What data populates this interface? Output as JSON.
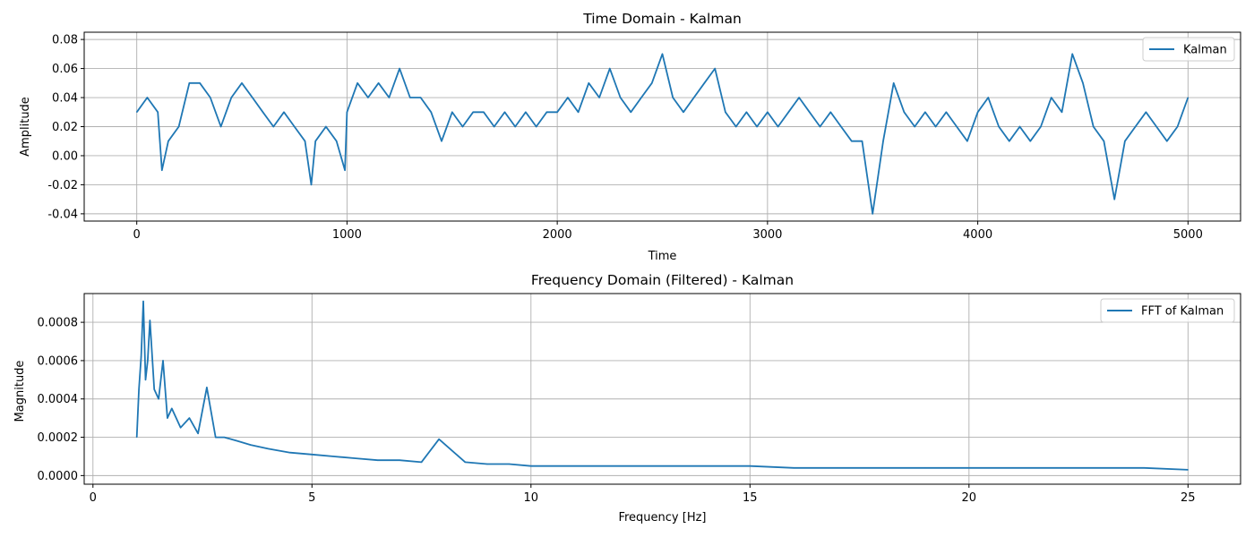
{
  "chart_data": [
    {
      "type": "line",
      "title": "Time Domain - Kalman",
      "xlabel": "Time",
      "ylabel": "Amplitude",
      "xlim": [
        -250,
        5250
      ],
      "ylim": [
        -0.045,
        0.085
      ],
      "xticks": [
        0,
        1000,
        2000,
        3000,
        4000,
        5000
      ],
      "yticks": [
        -0.04,
        -0.02,
        0.0,
        0.02,
        0.04,
        0.06,
        0.08
      ],
      "ytick_decimals": 2,
      "grid": true,
      "legend_position": "top-right",
      "series": [
        {
          "name": "Kalman",
          "color": "#1f77b4",
          "x": [
            0,
            50,
            100,
            120,
            150,
            200,
            250,
            300,
            350,
            400,
            450,
            500,
            550,
            600,
            650,
            700,
            750,
            800,
            830,
            850,
            900,
            950,
            990,
            1000,
            1050,
            1100,
            1150,
            1200,
            1250,
            1300,
            1350,
            1400,
            1450,
            1500,
            1550,
            1600,
            1650,
            1700,
            1750,
            1800,
            1850,
            1900,
            1950,
            2000,
            2050,
            2100,
            2150,
            2200,
            2250,
            2300,
            2350,
            2400,
            2450,
            2500,
            2550,
            2600,
            2650,
            2700,
            2750,
            2800,
            2850,
            2900,
            2950,
            3000,
            3050,
            3100,
            3150,
            3200,
            3250,
            3300,
            3350,
            3400,
            3450,
            3500,
            3550,
            3600,
            3650,
            3700,
            3750,
            3800,
            3850,
            3900,
            3950,
            4000,
            4050,
            4100,
            4150,
            4200,
            4250,
            4300,
            4350,
            4400,
            4450,
            4500,
            4550,
            4600,
            4650,
            4700,
            4750,
            4800,
            4850,
            4900,
            4950,
            5000
          ],
          "values": [
            0.03,
            0.04,
            0.03,
            -0.01,
            0.01,
            0.02,
            0.05,
            0.05,
            0.04,
            0.02,
            0.04,
            0.05,
            0.04,
            0.03,
            0.02,
            0.03,
            0.02,
            0.01,
            -0.02,
            0.01,
            0.02,
            0.01,
            -0.01,
            0.03,
            0.05,
            0.04,
            0.05,
            0.04,
            0.06,
            0.04,
            0.04,
            0.03,
            0.01,
            0.03,
            0.02,
            0.03,
            0.03,
            0.02,
            0.03,
            0.02,
            0.03,
            0.02,
            0.03,
            0.03,
            0.04,
            0.03,
            0.05,
            0.04,
            0.06,
            0.04,
            0.03,
            0.04,
            0.05,
            0.07,
            0.04,
            0.03,
            0.04,
            0.05,
            0.06,
            0.03,
            0.02,
            0.03,
            0.02,
            0.03,
            0.02,
            0.03,
            0.04,
            0.03,
            0.02,
            0.03,
            0.02,
            0.01,
            0.01,
            -0.04,
            0.01,
            0.05,
            0.03,
            0.02,
            0.03,
            0.02,
            0.03,
            0.02,
            0.01,
            0.03,
            0.04,
            0.02,
            0.01,
            0.02,
            0.01,
            0.02,
            0.04,
            0.03,
            0.07,
            0.05,
            0.02,
            0.01,
            -0.03,
            0.01,
            0.02,
            0.03,
            0.02,
            0.01,
            0.02,
            0.04
          ]
        }
      ]
    },
    {
      "type": "line",
      "title": "Frequency Domain (Filtered) - Kalman",
      "xlabel": "Frequency [Hz]",
      "ylabel": "Magnitude",
      "xlim": [
        -0.2,
        26.2
      ],
      "ylim": [
        -4.5e-05,
        0.00095
      ],
      "xticks": [
        0,
        5,
        10,
        15,
        20,
        25
      ],
      "yticks": [
        0.0,
        0.0002,
        0.0004,
        0.0006,
        0.0008
      ],
      "ytick_decimals": 4,
      "grid": true,
      "legend_position": "top-right",
      "series": [
        {
          "name": "FFT of Kalman",
          "color": "#1f77b4",
          "x": [
            1.0,
            1.05,
            1.1,
            1.15,
            1.2,
            1.25,
            1.3,
            1.4,
            1.5,
            1.6,
            1.7,
            1.8,
            2.0,
            2.2,
            2.4,
            2.6,
            2.8,
            3.0,
            3.3,
            3.6,
            4.0,
            4.5,
            5.0,
            5.5,
            6.0,
            6.5,
            7.0,
            7.5,
            7.9,
            8.5,
            9.0,
            9.5,
            10.0,
            11.0,
            12.0,
            13.0,
            14.0,
            15.0,
            16.0,
            17.0,
            18.0,
            19.0,
            20.0,
            21.0,
            22.0,
            23.0,
            24.0,
            25.0
          ],
          "values": [
            0.0002,
            0.00045,
            0.00062,
            0.00091,
            0.0005,
            0.0006,
            0.00081,
            0.00045,
            0.0004,
            0.0006,
            0.0003,
            0.00035,
            0.00025,
            0.0003,
            0.00022,
            0.00046,
            0.0002,
            0.0002,
            0.00018,
            0.00016,
            0.00014,
            0.00012,
            0.00011,
            0.0001,
            9e-05,
            8e-05,
            8e-05,
            7e-05,
            0.00019,
            7e-05,
            6e-05,
            6e-05,
            5e-05,
            5e-05,
            5e-05,
            5e-05,
            5e-05,
            5e-05,
            4e-05,
            4e-05,
            4e-05,
            4e-05,
            4e-05,
            4e-05,
            4e-05,
            4e-05,
            4e-05,
            3e-05
          ]
        }
      ]
    }
  ]
}
